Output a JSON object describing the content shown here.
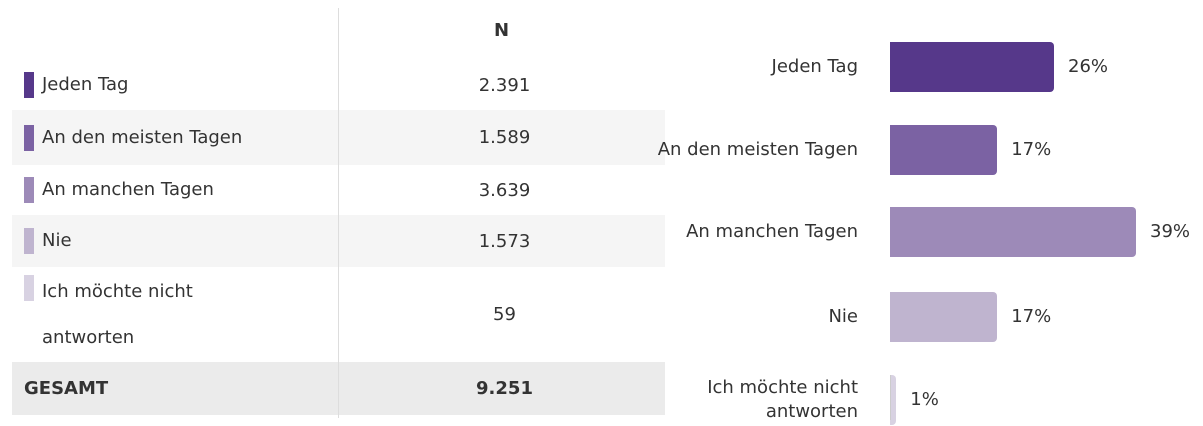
{
  "table": {
    "header": "N",
    "rows": [
      {
        "label": "Jeden Tag",
        "n": "2.391",
        "color": "#56388a"
      },
      {
        "label": "An den meisten Tagen",
        "n": "1.589",
        "color": "#7b62a3"
      },
      {
        "label": "An manchen Tagen",
        "n": "3.639",
        "color": "#9d8ab8"
      },
      {
        "label": "Nie",
        "n": "1.573",
        "color": "#bfb4cf"
      },
      {
        "label": "Ich möchte nicht antworten",
        "n": "59",
        "color": "#d8d2e2"
      }
    ],
    "total": {
      "label": "GESAMT",
      "n": "9.251"
    }
  },
  "chart_data": {
    "type": "bar",
    "orientation": "horizontal",
    "categories": [
      "Jeden Tag",
      "An den meisten Tagen",
      "An manchen Tagen",
      "Nie",
      "Ich möchte nicht antworten"
    ],
    "values": [
      26,
      17,
      39,
      17,
      1
    ],
    "value_labels": [
      "26%",
      "17%",
      "39%",
      "17%",
      "1%"
    ],
    "colors": [
      "#56388a",
      "#7b62a3",
      "#9d8ab8",
      "#bfb4cf",
      "#d8d2e2"
    ]
  }
}
